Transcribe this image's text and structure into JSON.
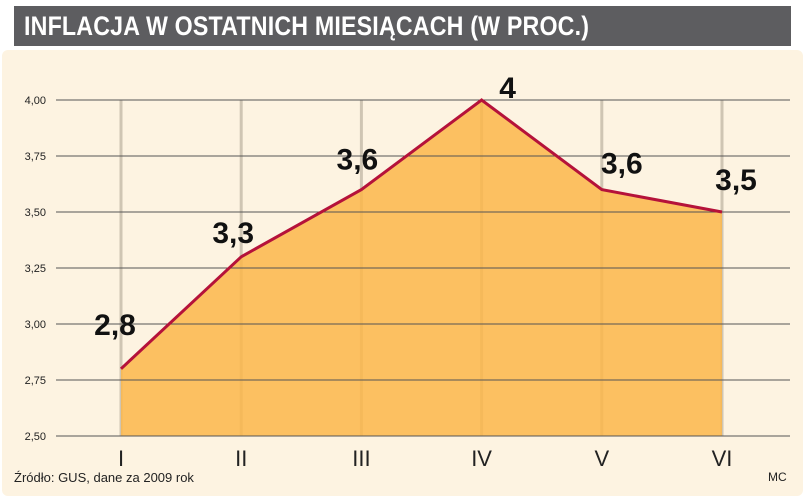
{
  "title": "INFLACJA W OSTATNICH MIESIĄCACH (W PROC.)",
  "source": "Źródło: GUS, dane za 2009 rok",
  "credit": "MC",
  "colors": {
    "title_bg": "#5d5d60",
    "panel_bg": "#fdf3e1",
    "area_fill": "#fbb64a",
    "line": "#b5123a",
    "grid": "#555555",
    "vertical_grid": "#cfc5b3"
  },
  "chart_data": {
    "type": "area",
    "categories": [
      "I",
      "II",
      "III",
      "IV",
      "V",
      "VI"
    ],
    "values": [
      2.8,
      3.3,
      3.6,
      4.0,
      3.6,
      3.5
    ],
    "data_labels": [
      "2,8",
      "3,3",
      "3,6",
      "4",
      "3,6",
      "3,5"
    ],
    "y_ticks": [
      "2,50",
      "2,75",
      "3,00",
      "3,25",
      "3,50",
      "3,75",
      "4,00"
    ],
    "y_tick_values": [
      2.5,
      2.75,
      3.0,
      3.25,
      3.5,
      3.75,
      4.0
    ],
    "ylim": [
      2.5,
      4.0
    ],
    "grid": true,
    "legend": "none"
  }
}
